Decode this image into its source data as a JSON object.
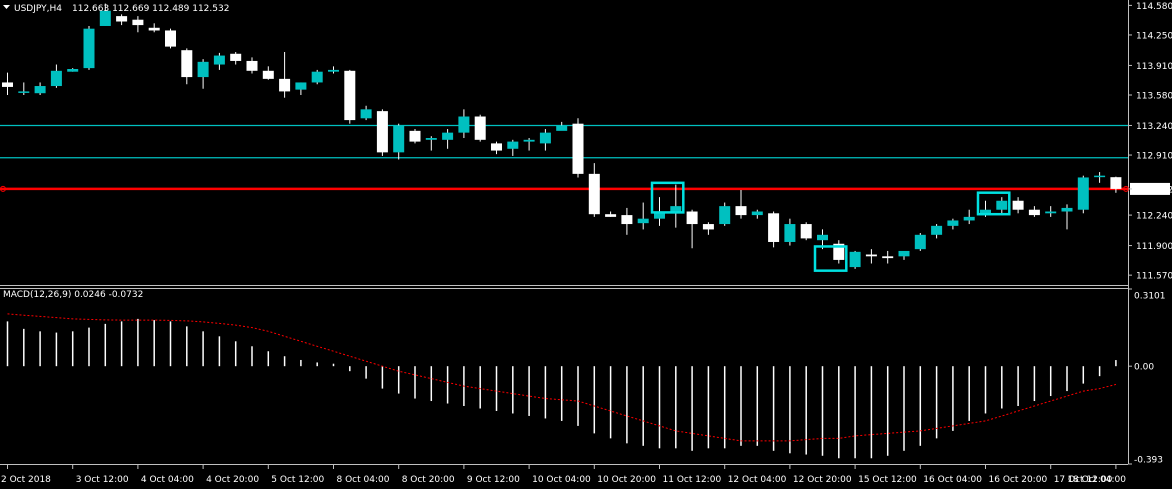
{
  "header": {
    "symbol_timeframe": "USDJPY,H4",
    "ohlc": "112.663 112.669 112.489 112.532",
    "macd_label": "MACD(12,26,9) 0.0246 -0.0732"
  },
  "colors": {
    "background": "#000000",
    "bull": "#00c0c0",
    "bear": "#ffffff",
    "wick": "#ffffff",
    "level_line": "#00c0c0",
    "price_line": "#ff0000",
    "grid": "#c0c0c0",
    "macd_histogram": "#ffffff",
    "macd_signal": "#ff0000",
    "highlight_box": "#00e0e0",
    "price_tag_bg": "#ffffff",
    "price_tag_text": "#000000"
  },
  "chart_data": [
    {
      "type": "candlestick",
      "title": "USDJPY,H4",
      "ylim": [
        111.46,
        114.64
      ],
      "y_ticks": [
        "114.580",
        "114.250",
        "113.910",
        "113.580",
        "113.240",
        "112.910",
        "112.532",
        "112.240",
        "111.900",
        "111.570"
      ],
      "x_ticks": [
        "2 Oct 2018",
        "3 Oct 12:00",
        "4 Oct 04:00",
        "4 Oct 20:00",
        "5 Oct 12:00",
        "8 Oct 04:00",
        "8 Oct 20:00",
        "9 Oct 12:00",
        "10 Oct 04:00",
        "10 Oct 20:00",
        "11 Oct 12:00",
        "12 Oct 04:00",
        "12 Oct 20:00",
        "15 Oct 12:00",
        "16 Oct 04:00",
        "16 Oct 20:00",
        "17 Oct 12:00",
        "18 Oct 04:00"
      ],
      "horizontal_levels": [
        113.24,
        112.88
      ],
      "current_price": 112.532,
      "current_price_label": "112.532",
      "highlight_boxes": [
        {
          "from": 40,
          "to": 41,
          "low": 112.27,
          "high": 112.6
        },
        {
          "from": 50,
          "to": 51,
          "low": 111.62,
          "high": 111.89
        },
        {
          "from": 60,
          "to": 61,
          "low": 112.25,
          "high": 112.49
        }
      ],
      "candles": [
        {
          "o": 113.72,
          "h": 113.83,
          "l": 113.58,
          "c": 113.67
        },
        {
          "o": 113.62,
          "h": 113.72,
          "l": 113.58,
          "c": 113.62
        },
        {
          "o": 113.6,
          "h": 113.72,
          "l": 113.58,
          "c": 113.68
        },
        {
          "o": 113.68,
          "h": 113.92,
          "l": 113.66,
          "c": 113.85
        },
        {
          "o": 113.84,
          "h": 113.88,
          "l": 113.84,
          "c": 113.87
        },
        {
          "o": 113.88,
          "h": 114.35,
          "l": 113.86,
          "c": 114.32
        },
        {
          "o": 114.35,
          "h": 114.6,
          "l": 114.35,
          "c": 114.52
        },
        {
          "o": 114.46,
          "h": 114.48,
          "l": 114.36,
          "c": 114.4
        },
        {
          "o": 114.42,
          "h": 114.46,
          "l": 114.28,
          "c": 114.36
        },
        {
          "o": 114.33,
          "h": 114.38,
          "l": 114.28,
          "c": 114.3
        },
        {
          "o": 114.3,
          "h": 114.32,
          "l": 114.1,
          "c": 114.12
        },
        {
          "o": 114.08,
          "h": 114.1,
          "l": 113.7,
          "c": 113.78
        },
        {
          "o": 113.78,
          "h": 113.98,
          "l": 113.65,
          "c": 113.95
        },
        {
          "o": 113.92,
          "h": 114.05,
          "l": 113.86,
          "c": 114.02
        },
        {
          "o": 114.04,
          "h": 114.06,
          "l": 113.92,
          "c": 113.96
        },
        {
          "o": 113.96,
          "h": 114.0,
          "l": 113.82,
          "c": 113.85
        },
        {
          "o": 113.85,
          "h": 113.9,
          "l": 113.75,
          "c": 113.76
        },
        {
          "o": 113.76,
          "h": 114.06,
          "l": 113.55,
          "c": 113.62
        },
        {
          "o": 113.64,
          "h": 113.72,
          "l": 113.58,
          "c": 113.72
        },
        {
          "o": 113.72,
          "h": 113.86,
          "l": 113.7,
          "c": 113.84
        },
        {
          "o": 113.84,
          "h": 113.9,
          "l": 113.82,
          "c": 113.86
        },
        {
          "o": 113.85,
          "h": 113.86,
          "l": 113.26,
          "c": 113.3
        },
        {
          "o": 113.32,
          "h": 113.46,
          "l": 113.3,
          "c": 113.42
        },
        {
          "o": 113.4,
          "h": 113.42,
          "l": 112.9,
          "c": 112.94
        },
        {
          "o": 112.94,
          "h": 113.26,
          "l": 112.86,
          "c": 113.24
        },
        {
          "o": 113.18,
          "h": 113.2,
          "l": 113.04,
          "c": 113.06
        },
        {
          "o": 113.08,
          "h": 113.12,
          "l": 112.96,
          "c": 113.1
        },
        {
          "o": 113.08,
          "h": 113.2,
          "l": 112.98,
          "c": 113.16
        },
        {
          "o": 113.16,
          "h": 113.42,
          "l": 113.1,
          "c": 113.34
        },
        {
          "o": 113.34,
          "h": 113.36,
          "l": 113.06,
          "c": 113.08
        },
        {
          "o": 113.04,
          "h": 113.06,
          "l": 112.92,
          "c": 112.96
        },
        {
          "o": 112.98,
          "h": 113.08,
          "l": 112.9,
          "c": 113.06
        },
        {
          "o": 113.06,
          "h": 113.1,
          "l": 112.96,
          "c": 113.08
        },
        {
          "o": 113.04,
          "h": 113.2,
          "l": 112.96,
          "c": 113.16
        },
        {
          "o": 113.18,
          "h": 113.28,
          "l": 113.2,
          "c": 113.24
        },
        {
          "o": 113.26,
          "h": 113.32,
          "l": 112.66,
          "c": 112.7
        },
        {
          "o": 112.7,
          "h": 112.82,
          "l": 112.22,
          "c": 112.25
        },
        {
          "o": 112.25,
          "h": 112.28,
          "l": 112.22,
          "c": 112.22
        },
        {
          "o": 112.24,
          "h": 112.32,
          "l": 112.02,
          "c": 112.14
        },
        {
          "o": 112.15,
          "h": 112.38,
          "l": 112.08,
          "c": 112.2
        },
        {
          "o": 112.2,
          "h": 112.44,
          "l": 112.12,
          "c": 112.26
        },
        {
          "o": 112.26,
          "h": 112.58,
          "l": 112.1,
          "c": 112.34
        },
        {
          "o": 112.28,
          "h": 112.3,
          "l": 111.87,
          "c": 112.14
        },
        {
          "o": 112.14,
          "h": 112.16,
          "l": 112.02,
          "c": 112.08
        },
        {
          "o": 112.14,
          "h": 112.38,
          "l": 112.12,
          "c": 112.34
        },
        {
          "o": 112.34,
          "h": 112.52,
          "l": 112.2,
          "c": 112.24
        },
        {
          "o": 112.24,
          "h": 112.3,
          "l": 112.2,
          "c": 112.28
        },
        {
          "o": 112.26,
          "h": 112.28,
          "l": 111.88,
          "c": 111.94
        },
        {
          "o": 111.94,
          "h": 112.2,
          "l": 111.9,
          "c": 112.14
        },
        {
          "o": 112.14,
          "h": 112.16,
          "l": 111.96,
          "c": 111.98
        },
        {
          "o": 111.96,
          "h": 112.08,
          "l": 111.86,
          "c": 112.02
        },
        {
          "o": 111.92,
          "h": 111.96,
          "l": 111.7,
          "c": 111.74
        },
        {
          "o": 111.66,
          "h": 111.84,
          "l": 111.64,
          "c": 111.83
        },
        {
          "o": 111.8,
          "h": 111.86,
          "l": 111.7,
          "c": 111.78
        },
        {
          "o": 111.78,
          "h": 111.84,
          "l": 111.7,
          "c": 111.76
        },
        {
          "o": 111.78,
          "h": 111.84,
          "l": 111.74,
          "c": 111.84
        },
        {
          "o": 111.86,
          "h": 112.04,
          "l": 111.84,
          "c": 112.02
        },
        {
          "o": 112.02,
          "h": 112.14,
          "l": 111.98,
          "c": 112.12
        },
        {
          "o": 112.12,
          "h": 112.2,
          "l": 112.08,
          "c": 112.18
        },
        {
          "o": 112.18,
          "h": 112.3,
          "l": 112.14,
          "c": 112.22
        },
        {
          "o": 112.26,
          "h": 112.4,
          "l": 112.22,
          "c": 112.3
        },
        {
          "o": 112.3,
          "h": 112.44,
          "l": 112.24,
          "c": 112.4
        },
        {
          "o": 112.4,
          "h": 112.44,
          "l": 112.26,
          "c": 112.3
        },
        {
          "o": 112.3,
          "h": 112.34,
          "l": 112.22,
          "c": 112.24
        },
        {
          "o": 112.26,
          "h": 112.34,
          "l": 112.22,
          "c": 112.28
        },
        {
          "o": 112.28,
          "h": 112.36,
          "l": 112.08,
          "c": 112.32
        },
        {
          "o": 112.3,
          "h": 112.68,
          "l": 112.26,
          "c": 112.66
        },
        {
          "o": 112.68,
          "h": 112.72,
          "l": 112.6,
          "c": 112.68
        },
        {
          "o": 112.663,
          "h": 112.669,
          "l": 112.489,
          "c": 112.532
        }
      ]
    },
    {
      "type": "bar",
      "title": "MACD(12,26,9) 0.0246 -0.0732",
      "ylim": [
        -0.393,
        0.3101
      ],
      "y_ticks": [
        "0.3101",
        "0.00",
        "-0.393"
      ],
      "macd": [
        0.18,
        0.15,
        0.14,
        0.135,
        0.14,
        0.155,
        0.17,
        0.18,
        0.19,
        0.185,
        0.18,
        0.16,
        0.14,
        0.12,
        0.1,
        0.08,
        0.06,
        0.04,
        0.025,
        0.015,
        0.01,
        -0.02,
        -0.05,
        -0.09,
        -0.11,
        -0.13,
        -0.14,
        -0.15,
        -0.16,
        -0.17,
        -0.18,
        -0.19,
        -0.2,
        -0.21,
        -0.22,
        -0.24,
        -0.27,
        -0.29,
        -0.31,
        -0.32,
        -0.33,
        -0.33,
        -0.34,
        -0.33,
        -0.33,
        -0.32,
        -0.32,
        -0.34,
        -0.35,
        -0.355,
        -0.36,
        -0.37,
        -0.37,
        -0.37,
        -0.36,
        -0.34,
        -0.32,
        -0.29,
        -0.26,
        -0.22,
        -0.19,
        -0.17,
        -0.16,
        -0.14,
        -0.12,
        -0.1,
        -0.07,
        -0.04,
        0.0246
      ],
      "signal": [
        0.21,
        0.205,
        0.2,
        0.195,
        0.19,
        0.188,
        0.186,
        0.185,
        0.185,
        0.185,
        0.184,
        0.182,
        0.178,
        0.172,
        0.165,
        0.155,
        0.14,
        0.12,
        0.1,
        0.08,
        0.06,
        0.04,
        0.02,
        0.0,
        -0.02,
        -0.035,
        -0.05,
        -0.065,
        -0.08,
        -0.09,
        -0.1,
        -0.11,
        -0.12,
        -0.13,
        -0.135,
        -0.14,
        -0.16,
        -0.18,
        -0.2,
        -0.22,
        -0.24,
        -0.26,
        -0.27,
        -0.28,
        -0.29,
        -0.3,
        -0.3,
        -0.3,
        -0.3,
        -0.295,
        -0.29,
        -0.29,
        -0.28,
        -0.275,
        -0.27,
        -0.265,
        -0.26,
        -0.25,
        -0.24,
        -0.23,
        -0.22,
        -0.2,
        -0.18,
        -0.16,
        -0.14,
        -0.12,
        -0.1,
        -0.09,
        -0.0732
      ]
    }
  ]
}
